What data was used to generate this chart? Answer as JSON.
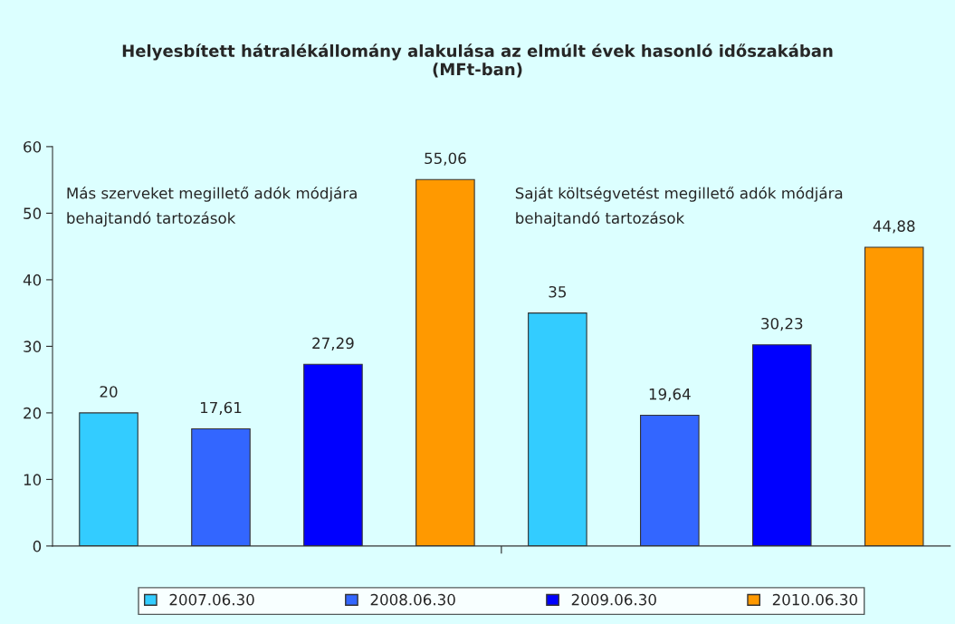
{
  "chart_data": {
    "type": "bar",
    "title": "Helyesbített hátralékállomány alakulása az elmúlt évek hasonló időszakában\n(MFt-ban)",
    "categories": [
      null,
      null
    ],
    "series": [
      {
        "name": "2007.06.30",
        "color": "#33ccff",
        "values": [
          20,
          35
        ],
        "value_labels": [
          "20",
          "35"
        ]
      },
      {
        "name": "2008.06.30",
        "color": "#3366ff",
        "values": [
          17.61,
          19.64
        ],
        "value_labels": [
          "17,61",
          "19,64"
        ]
      },
      {
        "name": "2009.06.30",
        "color": "#0000ff",
        "values": [
          27.29,
          30.23
        ],
        "value_labels": [
          "27,29",
          "30,23"
        ]
      },
      {
        "name": "2010.06.30",
        "color": "#ff9900",
        "values": [
          55.06,
          44.88
        ],
        "value_labels": [
          "55,06",
          "44,88"
        ]
      }
    ],
    "annotations": [
      "Más szerveket megillető adók módjára\nbehajtandó tartozások",
      "Saját költségvetést megillető adók módjára\nbehajtandó tartozások"
    ],
    "ylim": [
      0,
      60
    ],
    "yticks": [
      0,
      10,
      20,
      30,
      40,
      50,
      60
    ],
    "grid": false,
    "legend": "bottom"
  }
}
